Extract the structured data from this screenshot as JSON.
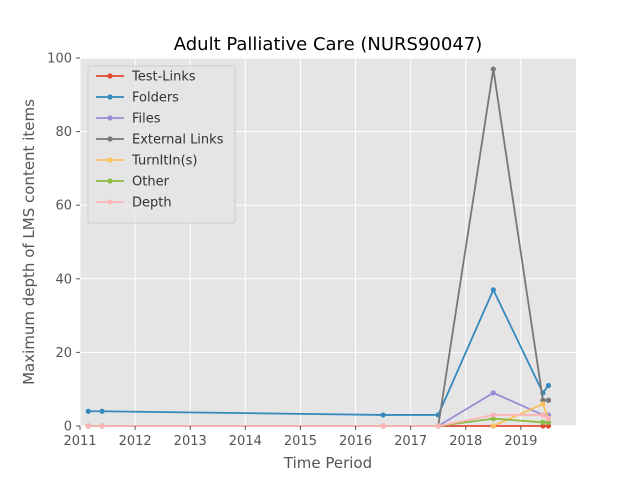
{
  "chart_data": {
    "type": "line",
    "title": "Adult Palliative Care (NURS90047)",
    "xlabel": "Time Period",
    "ylabel": "Maximum depth of LMS content items",
    "xlim": [
      2011.0,
      2020.0
    ],
    "ylim": [
      0,
      100
    ],
    "xticks": [
      2011,
      2012,
      2013,
      2014,
      2015,
      2016,
      2017,
      2018,
      2019
    ],
    "yticks": [
      0,
      20,
      40,
      60,
      80,
      100
    ],
    "grid": true,
    "legend_position": "top-left",
    "background": "#e5e5e5",
    "series": [
      {
        "name": "Test-Links",
        "color": "#e24a33",
        "points": [
          [
            2011.15,
            0
          ],
          [
            2011.4,
            0
          ],
          [
            2016.5,
            0
          ],
          [
            2017.5,
            0
          ],
          [
            2018.5,
            0
          ],
          [
            2019.4,
            0
          ],
          [
            2019.5,
            0
          ]
        ]
      },
      {
        "name": "Folders",
        "color": "#348abd",
        "points": [
          [
            2011.15,
            4
          ],
          [
            2011.4,
            4
          ],
          [
            2016.5,
            3
          ],
          [
            2017.5,
            3
          ],
          [
            2018.5,
            37
          ],
          [
            2019.4,
            9
          ],
          [
            2019.5,
            11
          ]
        ]
      },
      {
        "name": "Files",
        "color": "#988ed5",
        "points": [
          [
            2011.15,
            0
          ],
          [
            2011.4,
            0
          ],
          [
            2016.5,
            0
          ],
          [
            2017.5,
            0
          ],
          [
            2018.5,
            9
          ],
          [
            2019.4,
            3
          ],
          [
            2019.5,
            3
          ]
        ]
      },
      {
        "name": "External Links",
        "color": "#777777",
        "points": [
          [
            2011.15,
            0
          ],
          [
            2011.4,
            0
          ],
          [
            2016.5,
            0
          ],
          [
            2017.5,
            0
          ],
          [
            2018.5,
            97
          ],
          [
            2019.4,
            7
          ],
          [
            2019.5,
            7
          ]
        ]
      },
      {
        "name": "TurnItIn(s)",
        "color": "#fbc15e",
        "points": [
          [
            2018.5,
            0
          ],
          [
            2019.4,
            6
          ],
          [
            2019.5,
            2
          ]
        ]
      },
      {
        "name": "Other",
        "color": "#8eba42",
        "points": [
          [
            2011.15,
            0
          ],
          [
            2011.4,
            0
          ],
          [
            2016.5,
            0
          ],
          [
            2017.5,
            0
          ],
          [
            2018.5,
            2
          ],
          [
            2019.4,
            1
          ],
          [
            2019.5,
            1
          ]
        ]
      },
      {
        "name": "Depth",
        "color": "#ffb5b8",
        "points": [
          [
            2011.15,
            0
          ],
          [
            2011.4,
            0
          ],
          [
            2016.5,
            0
          ],
          [
            2017.5,
            0
          ],
          [
            2018.5,
            3
          ],
          [
            2019.4,
            3
          ],
          [
            2019.5,
            2
          ]
        ]
      }
    ]
  }
}
